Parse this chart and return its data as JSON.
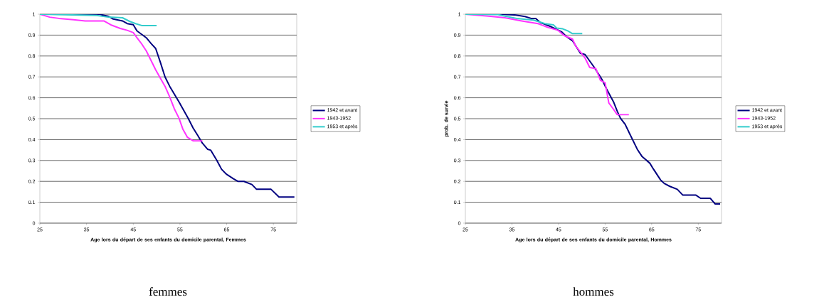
{
  "chart_data": [
    {
      "type": "line",
      "xlabel": "Age lors du départ de ses enfants du domicile parental, Femmes",
      "annotations": [
        "femmes"
      ],
      "xlim": [
        25,
        80
      ],
      "ylim": [
        0,
        1
      ],
      "xticks": [
        25,
        35,
        45,
        55,
        65,
        75
      ],
      "yticks": [
        0,
        0.1,
        0.2,
        0.3,
        0.4,
        0.5,
        0.6,
        0.7,
        0.8,
        0.9,
        1
      ],
      "grid": "y",
      "legend": "right",
      "series": [
        {
          "name": "1942 et avant",
          "color": "#000080",
          "x": [
            25,
            37.7,
            39.7,
            40.7,
            42.7,
            43.7,
            45,
            45.8,
            47.8,
            48.8,
            49.8,
            50.8,
            51.8,
            52.8,
            54.8,
            55.8,
            56.8,
            57.8,
            58.8,
            59.8,
            60.9,
            61.6,
            62.9,
            63.9,
            64.9,
            66.4,
            67.4,
            68.7,
            70.4,
            71.4,
            74.5,
            76.2,
            79.5
          ],
          "values": [
            1,
            1,
            0.99,
            0.977,
            0.968,
            0.955,
            0.95,
            0.92,
            0.887,
            0.86,
            0.836,
            0.77,
            0.7,
            0.655,
            0.58,
            0.54,
            0.5,
            0.456,
            0.42,
            0.383,
            0.354,
            0.349,
            0.3,
            0.258,
            0.235,
            0.213,
            0.2,
            0.2,
            0.185,
            0.162,
            0.162,
            0.125,
            0.125
          ]
        },
        {
          "name": "1943-1952",
          "color": "#ff33ff",
          "x": [
            25,
            27.1,
            29.1,
            32.2,
            34.7,
            38.7,
            40.2,
            42.2,
            43.7,
            45,
            45.8,
            46.8,
            47.8,
            48.8,
            49.8,
            50.8,
            51.8,
            52.8,
            53.8,
            54.8,
            55.6,
            56.6,
            57.8,
            59.8
          ],
          "values": [
            1,
            0.986,
            0.98,
            0.974,
            0.968,
            0.968,
            0.949,
            0.932,
            0.923,
            0.912,
            0.887,
            0.858,
            0.824,
            0.779,
            0.734,
            0.694,
            0.655,
            0.604,
            0.547,
            0.502,
            0.451,
            0.411,
            0.394,
            0.394
          ]
        },
        {
          "name": "1953 et après",
          "color": "#33cccc",
          "x": [
            25,
            37.2,
            39.7,
            42.7,
            44.2,
            45.5,
            46.8,
            50
          ],
          "values": [
            1,
            0.994,
            0.986,
            0.983,
            0.966,
            0.955,
            0.946,
            0.946
          ]
        }
      ]
    },
    {
      "type": "line",
      "xlabel": "Age lors du départ de ses enfants du domicile parental, Hommes",
      "ylabel": "prob. de survie",
      "annotations": [
        "hommes"
      ],
      "xlim": [
        25,
        80
      ],
      "ylim": [
        0,
        1
      ],
      "xticks": [
        25,
        35,
        45,
        55,
        65,
        75
      ],
      "yticks": [
        0,
        0.1,
        0.2,
        0.3,
        0.4,
        0.5,
        0.6,
        0.7,
        0.8,
        0.9,
        1
      ],
      "grid": "y",
      "legend": "right",
      "series": [
        {
          "name": "1942 et avant",
          "color": "#000080",
          "x": [
            25,
            32.5,
            35.5,
            37.8,
            39.1,
            40.1,
            41.1,
            43.1,
            45.7,
            46.7,
            48,
            49.7,
            50.7,
            52.7,
            54.3,
            55.3,
            56.8,
            57.6,
            58.3,
            59.3,
            60.3,
            61.9,
            62.9,
            64.6,
            65.4,
            66.9,
            67.7,
            68.9,
            70.5,
            71.7,
            74.5,
            75.5,
            77.6,
            78.6,
            79.7
          ],
          "values": [
            1,
            1,
            0.997,
            0.989,
            0.98,
            0.98,
            0.96,
            0.943,
            0.915,
            0.893,
            0.873,
            0.813,
            0.807,
            0.745,
            0.689,
            0.643,
            0.581,
            0.536,
            0.502,
            0.473,
            0.427,
            0.354,
            0.32,
            0.287,
            0.258,
            0.207,
            0.19,
            0.176,
            0.162,
            0.134,
            0.134,
            0.119,
            0.119,
            0.092,
            0.092
          ]
        },
        {
          "name": "1943-1952",
          "color": "#ff33ff",
          "x": [
            25,
            30,
            33.5,
            37.1,
            40.6,
            42.6,
            44.9,
            46.2,
            48,
            48.7,
            49.7,
            50.7,
            51.7,
            53,
            54,
            55,
            55.8,
            56.8,
            57.6,
            60.1
          ],
          "values": [
            1,
            0.991,
            0.983,
            0.968,
            0.955,
            0.938,
            0.923,
            0.898,
            0.881,
            0.847,
            0.819,
            0.79,
            0.745,
            0.74,
            0.683,
            0.672,
            0.575,
            0.545,
            0.519,
            0.519
          ]
        },
        {
          "name": "1953 et après",
          "color": "#33cccc",
          "x": [
            25,
            32,
            33.5,
            36,
            39.6,
            42.1,
            43.9,
            44.6,
            45.9,
            46.9,
            48,
            50.1
          ],
          "values": [
            1,
            0.998,
            0.991,
            0.98,
            0.972,
            0.955,
            0.949,
            0.934,
            0.93,
            0.921,
            0.907,
            0.907
          ]
        }
      ]
    }
  ]
}
